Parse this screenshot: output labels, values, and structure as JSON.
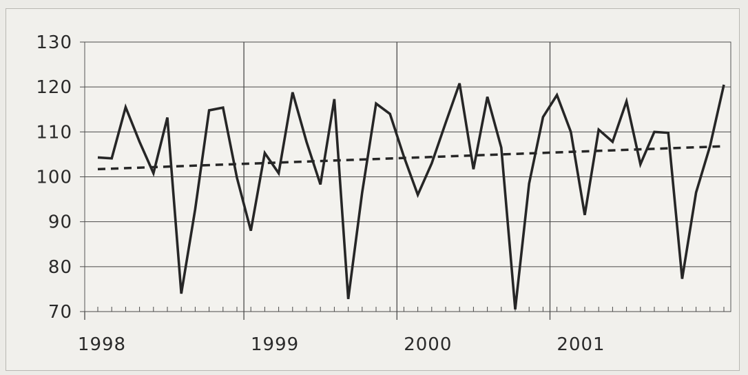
{
  "chart_data": {
    "type": "line",
    "title": "",
    "xlabel": "",
    "ylabel": "",
    "ylim": [
      70,
      130
    ],
    "yticks": [
      70,
      80,
      90,
      100,
      110,
      120,
      130
    ],
    "xlim": [
      0,
      46
    ],
    "year_ticks": [
      {
        "label": "1998",
        "x": 0
      },
      {
        "label": "1999",
        "x": 11
      },
      {
        "label": "2000",
        "x": 22
      },
      {
        "label": "2001",
        "x": 33
      }
    ],
    "grid": true,
    "series": [
      {
        "style": "solid",
        "x": [
          0,
          1,
          2,
          3,
          4,
          5,
          6,
          7,
          8,
          9,
          10,
          11,
          12,
          13,
          14,
          15,
          16,
          17,
          18,
          19,
          20,
          21,
          22,
          23,
          24,
          25,
          26,
          27,
          28,
          29,
          30,
          31,
          32,
          33,
          34,
          35,
          36,
          37,
          38,
          39,
          40,
          41,
          42,
          43,
          44,
          45
        ],
        "values": [
          104.3,
          104.1,
          115.5,
          107.8,
          100.8,
          113.2,
          74.0,
          92.8,
          114.8,
          115.4,
          99.8,
          88.0,
          105.3,
          100.8,
          118.8,
          107.8,
          98.3,
          117.3,
          72.8,
          96.5,
          116.3,
          114.0,
          104.5,
          96.0,
          103.0,
          112.0,
          120.8,
          101.7,
          117.8,
          106.5,
          70.5,
          98.5,
          113.3,
          118.2,
          110.0,
          91.5,
          110.5,
          107.8,
          116.8,
          102.8,
          110.0,
          109.8,
          77.3,
          96.5,
          106.8,
          120.5
        ]
      },
      {
        "style": "dashed",
        "x": [
          0,
          45
        ],
        "values": [
          101.7,
          106.8
        ]
      }
    ],
    "colors": {
      "line": "#262626",
      "grid": "#4a4a4a",
      "plot_background": "#f3f2ee"
    }
  }
}
